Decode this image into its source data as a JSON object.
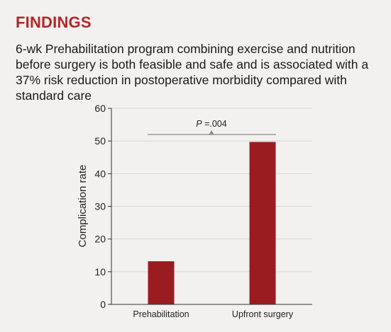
{
  "heading": "FINDINGS",
  "summary": "6-wk Prehabilitation program combining exercise and nutrition before surgery is both feasible and safe and is associated with a 37% risk reduction in postoperative morbidity compared with standard care",
  "colors": {
    "heading": "#b0282a",
    "bar": "#9b1c20",
    "background": "#f2f1ef",
    "grid": "#d9d7d3"
  },
  "chart_data": {
    "type": "bar",
    "categories": [
      "Prehabilitation",
      "Upfront surgery"
    ],
    "values": [
      13.2,
      49.7
    ],
    "title": "",
    "xlabel": "",
    "ylabel": "Complication rate",
    "ylim": [
      0,
      60
    ],
    "yticks": [
      0,
      10,
      20,
      30,
      40,
      50,
      60
    ],
    "grid": true,
    "annotation": {
      "p_italic": "P",
      "p_rest": " =.004"
    }
  }
}
